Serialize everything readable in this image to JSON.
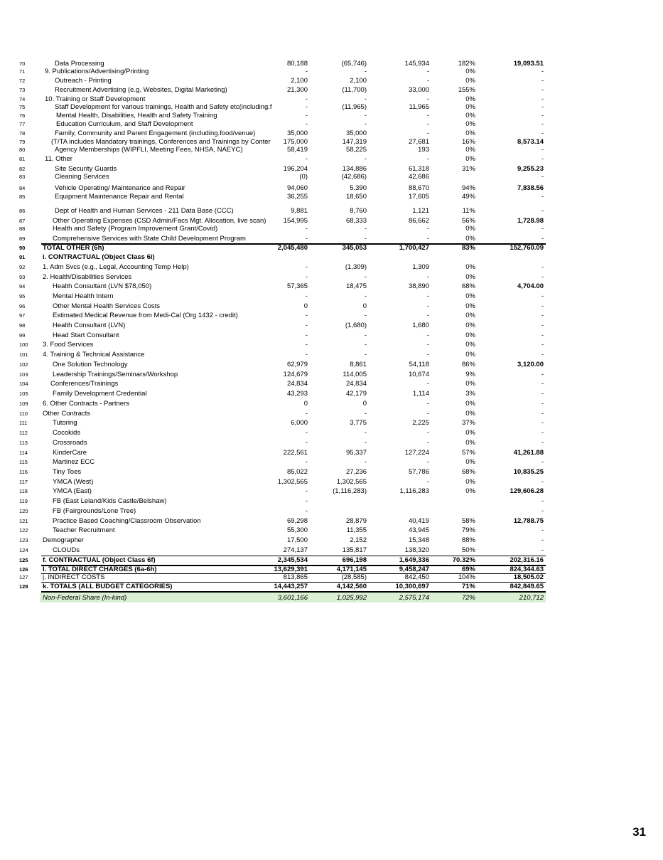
{
  "page_number": "31",
  "rows": [
    {
      "n": "70",
      "label": "Data Processing",
      "v": [
        "80,188",
        "(65,746)",
        "145,934",
        "182%",
        "19,093.51"
      ]
    },
    {
      "n": "71",
      "label": "9. Publications/Advertising/Printing",
      "v": [
        "-",
        "-",
        "-",
        "0%",
        "-"
      ]
    },
    {
      "n": "72",
      "label": "Outreach - Printing",
      "v": [
        "2,100",
        "2,100",
        "-",
        "0%",
        "-"
      ]
    },
    {
      "n": "73",
      "label": "Recruitment Advertising (e.g. Websites, Digital Marketing)",
      "v": [
        "21,300",
        "(11,700)",
        "33,000",
        "155%",
        "-"
      ]
    },
    {
      "n": "74",
      "label": "10. Training or Staff Development",
      "v": [
        "-",
        "-",
        "-",
        "0%",
        "-"
      ]
    },
    {
      "n": "75",
      "label": "Staff Development for various trainings, Health and Safety etc(including.f",
      "v": [
        "-",
        "(11,965)",
        "11,965",
        "0%",
        "-"
      ]
    },
    {
      "n": "76",
      "label": "Mental Health, Disabilities, Health and Safety Training",
      "v": [
        "-",
        "-",
        "-",
        "0%",
        "-"
      ]
    },
    {
      "n": "77",
      "label": "Education Curriculum, and Staff Development",
      "v": [
        "-",
        "-",
        "-",
        "0%",
        "-"
      ]
    },
    {
      "n": "78",
      "label": "Family, Community and Parent Engagement (including.food/venue)",
      "v": [
        "35,000",
        "35,000",
        "-",
        "0%",
        "-"
      ]
    },
    {
      "n": "79",
      "label": "(T/TA includes Mandatory trainings, Conferences and Trainings by Conter",
      "v": [
        "175,000",
        "147,319",
        "27,681",
        "16%",
        "8,573.14"
      ]
    },
    {
      "n": "80",
      "label": "Agency Memberships (WIPFLI, Meeting Fees, NHSA, NAEYC)",
      "v": [
        "58,419",
        "58,225",
        "193",
        "0%",
        "-"
      ]
    },
    {
      "n": "81",
      "label": "11. Other",
      "v": [
        "-",
        "-",
        "-",
        "0%",
        "-"
      ]
    },
    {
      "n": "82",
      "label": "Site Security Guards",
      "v": [
        "196,204",
        "134,886",
        "61,318",
        "31%",
        "9,255.23"
      ]
    },
    {
      "n": "83",
      "label": "Cleaning Services",
      "v": [
        "(0)",
        "(42,686)",
        "42,686",
        "",
        "-"
      ]
    },
    {
      "n": "84",
      "label": "Vehicle Operating/ Maintenance and Repair",
      "v": [
        "94,060",
        "5,390",
        "88,670",
        "94%",
        "7,838.56"
      ]
    },
    {
      "n": "85",
      "label": "Equipment Maintenance Repair and Rental",
      "v": [
        "36,255",
        "18,650",
        "17,605",
        "49%",
        "-"
      ]
    },
    {
      "n": "86",
      "label": "Dept of Health and Human Services - 211 Data Base (CCC)",
      "v": [
        "9,881",
        "8,760",
        "1,121",
        "11%",
        "-"
      ]
    },
    {
      "n": "87",
      "label": "Other Operating Expenses (CSD Admin/Facs Mgt. Allocation, live scan)",
      "v": [
        "154,995",
        "68,333",
        "86,662",
        "56%",
        "1,728.98"
      ]
    },
    {
      "n": "88",
      "label": "Health and Safety (Program Improvement Grant/Covid)",
      "v": [
        "-",
        "-",
        "-",
        "0%",
        "-"
      ]
    },
    {
      "n": "89",
      "label": "Comprehensive Services with State Child Development Program",
      "v": [
        "-",
        "-",
        "-",
        "0%",
        "-"
      ]
    },
    {
      "n": "90",
      "label": "TOTAL OTHER (6h)",
      "v": [
        "2,045,480",
        "345,053",
        "1,700,427",
        "83%",
        "152,760.09"
      ]
    },
    {
      "n": "91",
      "label": "i.  CONTRACTUAL  (Object Class 6i)",
      "v": [
        "",
        "",
        "",
        "",
        ""
      ]
    },
    {
      "n": "92",
      "label": "1. Adm Svcs (e.g., Legal, Accounting Temp Help)",
      "v": [
        "-",
        "(1,309)",
        "1,309",
        "0%",
        "-"
      ]
    },
    {
      "n": "93",
      "label": "2. Health/Disabilities Services",
      "v": [
        "-",
        "-",
        "-",
        "0%",
        "-"
      ]
    },
    {
      "n": "94",
      "label": "Health Consultant  (LVN $78,050)",
      "v": [
        "57,365",
        "18,475",
        "38,890",
        "68%",
        "4,704.00"
      ]
    },
    {
      "n": "95",
      "label": "Mental Health Intern",
      "v": [
        "-",
        "-",
        "-",
        "0%",
        "-"
      ]
    },
    {
      "n": "96",
      "label": "Other Mental Health Services Costs",
      "v": [
        "0",
        "0",
        "-",
        "0%",
        "-"
      ]
    },
    {
      "n": "97",
      "label": "Estimated Medical Revenue from Medi-Cal (Org 1432 - credit)",
      "v": [
        "-",
        "-",
        "-",
        "0%",
        "-"
      ]
    },
    {
      "n": "98",
      "label": "Health Consultant  (LVN)",
      "v": [
        "-",
        "(1,680)",
        "1,680",
        "0%",
        "-"
      ]
    },
    {
      "n": "99",
      "label": "Head Start Consultant",
      "v": [
        "-",
        "-",
        "-",
        "0%",
        "-"
      ]
    },
    {
      "n": "100",
      "label": "3. Food Services",
      "v": [
        "-",
        "-",
        "-",
        "0%",
        "-"
      ]
    },
    {
      "n": "101",
      "label": "4. Training & Technical Assistance",
      "v": [
        "-",
        "-",
        "-",
        "0%",
        "-"
      ]
    },
    {
      "n": "102",
      "label": "One Solution Technology",
      "v": [
        "62,979",
        "8,861",
        "54,118",
        "86%",
        "3,120.00"
      ]
    },
    {
      "n": "103",
      "label": "Leadership Trainings/Seminars/Workshop",
      "v": [
        "124,679",
        "114,005",
        "10,674",
        "9%",
        "-"
      ]
    },
    {
      "n": "104",
      "label": "Conferences/Trainings",
      "v": [
        "24,834",
        "24,834",
        "-",
        "0%",
        "-"
      ]
    },
    {
      "n": "105",
      "label": "Family Development Credential",
      "v": [
        "43,293",
        "42,179",
        "1,114",
        "3%",
        "-"
      ]
    },
    {
      "n": "109",
      "label": "6. Other Contracts - Partners",
      "v": [
        "0",
        "0",
        "-",
        "0%",
        "-"
      ]
    },
    {
      "n": "110",
      "label": "Other Contracts",
      "v": [
        "-",
        "-",
        "-",
        "0%",
        "-"
      ]
    },
    {
      "n": "111",
      "label": "Tutoring",
      "v": [
        "6,000",
        "3,775",
        "2,225",
        "37%",
        "-"
      ]
    },
    {
      "n": "112",
      "label": "Cocokids",
      "v": [
        "-",
        "-",
        "-",
        "0%",
        "-"
      ]
    },
    {
      "n": "113",
      "label": "Crossroads",
      "v": [
        "-",
        "-",
        "-",
        "0%",
        "-"
      ]
    },
    {
      "n": "114",
      "label": "KinderCare",
      "v": [
        "222,561",
        "95,337",
        "127,224",
        "57%",
        "41,261.88"
      ]
    },
    {
      "n": "115",
      "label": "Martinez ECC",
      "v": [
        "-",
        "-",
        "-",
        "0%",
        "-"
      ]
    },
    {
      "n": "116",
      "label": "Tiny Toes",
      "v": [
        "85,022",
        "27,236",
        "57,786",
        "68%",
        "10,835.25"
      ]
    },
    {
      "n": "117",
      "label": "YMCA (West)",
      "v": [
        "1,302,565",
        "1,302,565",
        "-",
        "0%",
        "-"
      ]
    },
    {
      "n": "118",
      "label": "YMCA (East)",
      "v": [
        "-",
        "(1,116,283)",
        "1,116,283",
        "0%",
        "129,606.28"
      ]
    },
    {
      "n": "119",
      "label": "FB (East Leland/Kids Castle/Belshaw)",
      "v": [
        "-",
        "",
        "",
        "",
        "-"
      ]
    },
    {
      "n": "120",
      "label": "FB (Fairgrounds/Lone Tree)",
      "v": [
        "-",
        "",
        "",
        "",
        "-"
      ]
    },
    {
      "n": "121",
      "label": "Practice Based Coaching/Classroom Observation",
      "v": [
        "69,298",
        "28,879",
        "40,419",
        "58%",
        "12,788.75"
      ]
    },
    {
      "n": "122",
      "label": "Teacher Recruitment",
      "v": [
        "55,300",
        "11,355",
        "43,945",
        "79%",
        "-"
      ]
    },
    {
      "n": "123",
      "label": "Demographer",
      "v": [
        "17,500",
        "2,152",
        "15,348",
        "88%",
        "-"
      ]
    },
    {
      "n": "124",
      "label": "CLOUDs",
      "v": [
        "274,137",
        "135,817",
        "138,320",
        "50%",
        "-"
      ]
    },
    {
      "n": "125",
      "label": "f.  CONTRACTUAL (Object Class 6f)",
      "v": [
        "2,345,534",
        "696,198",
        "1,649,336",
        "70.32%",
        "202,316.16"
      ]
    },
    {
      "n": "126",
      "label": "I.  TOTAL DIRECT CHARGES (6a-6h)",
      "v": [
        "13,629,391",
        "4,171,145",
        "9,458,247",
        "69%",
        "824,344.63"
      ]
    },
    {
      "n": "127",
      "label": "j.  INDIRECT COSTS",
      "v": [
        "813,865",
        "(28,585)",
        "842,450",
        "104%",
        "18,505.02"
      ]
    },
    {
      "n": "128",
      "label": "k. TOTALS (ALL BUDGET CATEGORIES)",
      "v": [
        "14,443,257",
        "4,142,560",
        "10,300,697",
        "71%",
        "842,849.65"
      ]
    },
    {
      "n": "",
      "label": "Non-Federal Share (In-kind)",
      "v": [
        "3,601,166",
        "1,025,992",
        "2,575,174",
        "72%",
        "210,712"
      ]
    }
  ]
}
